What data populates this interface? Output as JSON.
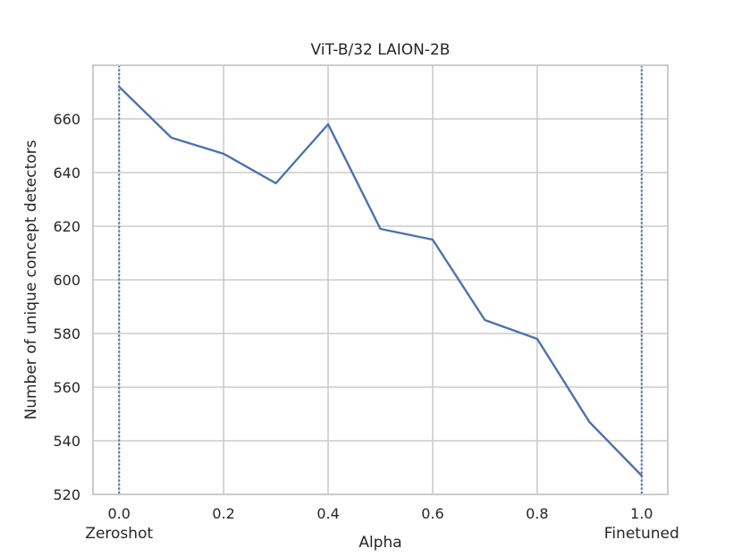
{
  "chart_data": {
    "type": "line",
    "title": "ViT-B/32 LAION-2B",
    "xlabel": "Alpha",
    "ylabel": "Number of unique concept detectors",
    "xlim": [
      -0.05,
      1.05
    ],
    "ylim": [
      520,
      680
    ],
    "x_ticks": [
      "0.0",
      "0.2",
      "0.4",
      "0.6",
      "0.8",
      "1.0"
    ],
    "x_tick_values": [
      0.0,
      0.2,
      0.4,
      0.6,
      0.8,
      1.0
    ],
    "y_ticks": [
      "520",
      "540",
      "560",
      "580",
      "600",
      "620",
      "640",
      "660"
    ],
    "y_tick_values": [
      520,
      540,
      560,
      580,
      600,
      620,
      640,
      660
    ],
    "x_annotations": [
      {
        "x": 0.0,
        "label": "Zeroshot"
      },
      {
        "x": 1.0,
        "label": "Finetuned"
      }
    ],
    "vertical_lines": [
      0.0,
      1.0
    ],
    "grid": true,
    "series": [
      {
        "x": [
          0.0,
          0.1,
          0.2,
          0.3,
          0.4,
          0.5,
          0.6,
          0.7,
          0.8,
          0.9,
          1.0
        ],
        "values": [
          672,
          653,
          647,
          636,
          658,
          619,
          615,
          585,
          578,
          547,
          527
        ]
      }
    ],
    "colors": {
      "line": "#4c72b0",
      "grid": "#cccccc",
      "axes": "#cccccc"
    }
  }
}
